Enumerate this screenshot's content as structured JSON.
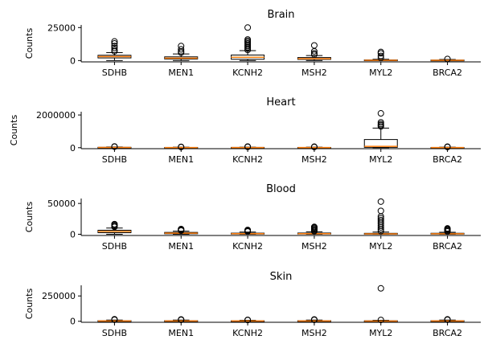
{
  "chart_data": [
    {
      "type": "boxplot",
      "title": "Brain",
      "ylabel": "Counts",
      "ylim": [
        -1000,
        27000
      ],
      "yticks": [
        0,
        25000
      ],
      "categories": [
        "SDHB",
        "MEN1",
        "KCNH2",
        "MSH2",
        "MYL2",
        "BRCA2"
      ],
      "boxes": [
        {
          "q1": 2000,
          "median": 3000,
          "q3": 4000,
          "whislo": 0,
          "whishi": 6000,
          "fliers": [
            7000,
            8000,
            9500,
            11000,
            13000,
            14500
          ]
        },
        {
          "q1": 1200,
          "median": 1800,
          "q3": 2800,
          "whislo": 0,
          "whishi": 5000,
          "fliers": [
            6000,
            7000,
            8500,
            11000
          ]
        },
        {
          "q1": 1000,
          "median": 2500,
          "q3": 4200,
          "whislo": 0,
          "whishi": 7500,
          "fliers": [
            8000,
            9000,
            10000,
            11000,
            12000,
            13000,
            14000,
            15000,
            16000,
            25000
          ]
        },
        {
          "q1": 900,
          "median": 1400,
          "q3": 2300,
          "whislo": 0,
          "whishi": 3800,
          "fliers": [
            4500,
            5500,
            7000,
            11500
          ]
        },
        {
          "q1": 100,
          "median": 250,
          "q3": 500,
          "whislo": 0,
          "whishi": 1000,
          "fliers": [
            2000,
            3500,
            5500,
            6500
          ]
        },
        {
          "q1": 100,
          "median": 200,
          "q3": 400,
          "whislo": 0,
          "whishi": 800,
          "fliers": [
            1200
          ]
        }
      ]
    },
    {
      "type": "boxplot",
      "title": "Heart",
      "ylabel": "Counts",
      "ylim": [
        -60000,
        2200000
      ],
      "yticks": [
        0,
        2000000
      ],
      "categories": [
        "SDHB",
        "MEN1",
        "KCNH2",
        "MSH2",
        "MYL2",
        "BRCA2"
      ],
      "boxes": [
        {
          "q1": 5000,
          "median": 12000,
          "q3": 25000,
          "whislo": 0,
          "whishi": 45000,
          "fliers": [
            60000,
            75000
          ]
        },
        {
          "q1": 3000,
          "median": 8000,
          "q3": 15000,
          "whislo": 0,
          "whishi": 30000,
          "fliers": [
            40000,
            50000
          ]
        },
        {
          "q1": 3000,
          "median": 8000,
          "q3": 18000,
          "whislo": 0,
          "whishi": 35000,
          "fliers": [
            50000,
            70000
          ]
        },
        {
          "q1": 3000,
          "median": 8000,
          "q3": 15000,
          "whislo": 0,
          "whishi": 30000,
          "fliers": [
            45000,
            60000
          ]
        },
        {
          "q1": 20000,
          "median": 80000,
          "q3": 500000,
          "whislo": 0,
          "whishi": 1200000,
          "fliers": [
            1300000,
            1380000,
            1450000,
            1550000,
            2100000
          ]
        },
        {
          "q1": 3000,
          "median": 8000,
          "q3": 15000,
          "whislo": 0,
          "whishi": 30000,
          "fliers": [
            45000,
            65000
          ]
        }
      ]
    },
    {
      "type": "boxplot",
      "title": "Blood",
      "ylabel": "Counts",
      "ylim": [
        -2000,
        58000
      ],
      "yticks": [
        0,
        50000
      ],
      "categories": [
        "SDHB",
        "MEN1",
        "KCNH2",
        "MSH2",
        "MYL2",
        "BRCA2"
      ],
      "boxes": [
        {
          "q1": 2500,
          "median": 4500,
          "q3": 6500,
          "whislo": 0,
          "whishi": 10000,
          "fliers": [
            12000,
            13500,
            15000,
            16500
          ]
        },
        {
          "q1": 800,
          "median": 1800,
          "q3": 3000,
          "whislo": 0,
          "whishi": 5000,
          "fliers": [
            6000,
            7000,
            8000,
            8500
          ]
        },
        {
          "q1": 300,
          "median": 900,
          "q3": 1800,
          "whislo": 0,
          "whishi": 3500,
          "fliers": [
            4500,
            5500,
            6500,
            7000
          ]
        },
        {
          "q1": 400,
          "median": 1000,
          "q3": 2000,
          "whislo": 0,
          "whishi": 4000,
          "fliers": [
            5000,
            6500,
            8000,
            9500,
            11000,
            12000
          ]
        },
        {
          "q1": 200,
          "median": 600,
          "q3": 1500,
          "whislo": 0,
          "whishi": 3500,
          "fliers": [
            5000,
            8000,
            11000,
            14000,
            17000,
            20000,
            23000,
            26000,
            29000,
            38000,
            53000
          ]
        },
        {
          "q1": 300,
          "median": 800,
          "q3": 1600,
          "whislo": 0,
          "whishi": 3200,
          "fliers": [
            4500,
            6000,
            7500,
            8500,
            9500
          ]
        }
      ]
    },
    {
      "type": "boxplot",
      "title": "Skin",
      "ylabel": "Counts",
      "ylim": [
        -10000,
        355000
      ],
      "yticks": [
        0,
        250000
      ],
      "categories": [
        "SDHB",
        "MEN1",
        "KCNH2",
        "MSH2",
        "MYL2",
        "BRCA2"
      ],
      "boxes": [
        {
          "q1": 1000,
          "median": 3000,
          "q3": 6000,
          "whislo": 0,
          "whishi": 12000,
          "fliers": [
            15000,
            20000
          ]
        },
        {
          "q1": 1000,
          "median": 3000,
          "q3": 6000,
          "whislo": 0,
          "whishi": 12000,
          "fliers": [
            14000,
            18000
          ]
        },
        {
          "q1": 800,
          "median": 2500,
          "q3": 5000,
          "whislo": 0,
          "whishi": 10000,
          "fliers": [
            12000,
            14000
          ]
        },
        {
          "q1": 1000,
          "median": 3000,
          "q3": 6000,
          "whislo": 0,
          "whishi": 12000,
          "fliers": [
            14000,
            18000
          ]
        },
        {
          "q1": 500,
          "median": 2000,
          "q3": 5000,
          "whislo": 0,
          "whishi": 10000,
          "fliers": [
            13000,
            325000
          ]
        },
        {
          "q1": 1000,
          "median": 3000,
          "q3": 6000,
          "whislo": 0,
          "whishi": 12000,
          "fliers": [
            15000,
            19000
          ]
        }
      ]
    }
  ],
  "colors": {
    "box": "#000000",
    "median": "#ff7f0e",
    "flier": "#000000",
    "axis": "#000000"
  }
}
